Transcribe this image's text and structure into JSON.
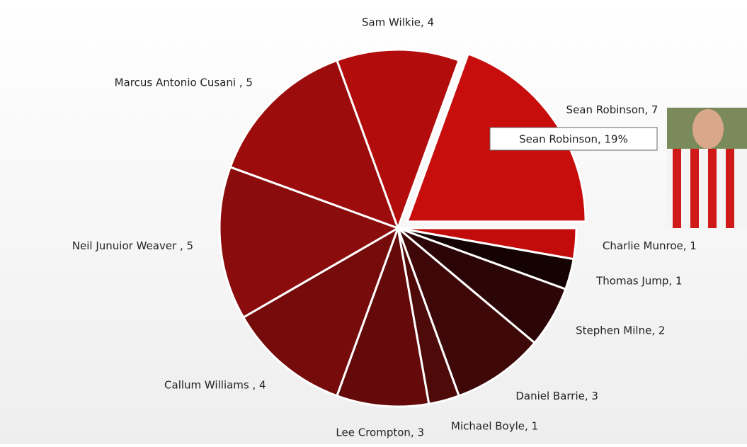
{
  "chart_data": {
    "type": "pie",
    "categories": [
      "Sean Robinson, 7",
      "Charlie Munroe, 1",
      "Thomas Jump, 1",
      "Stephen  Milne, 2",
      "Daniel Barrie, 3",
      "Michael Boyle, 1",
      "Lee Crompton, 3",
      "Callum Williams , 4",
      "Neil Junuior Weaver , 5",
      "Marcus Antonio Cusani , 5",
      "Sam Wilkie, 4"
    ],
    "values": [
      7,
      1,
      1,
      2,
      3,
      1,
      3,
      4,
      5,
      5,
      4
    ],
    "colors": [
      "#c80d0d",
      "#c20b0b",
      "#150303",
      "#2c0606",
      "#3e0808",
      "#4e0909",
      "#650a0a",
      "#760b0b",
      "#8a0c0c",
      "#9c0c0c",
      "#b20c0c"
    ],
    "exploded": 0,
    "tooltip": "Sean Robinson, 19%"
  }
}
